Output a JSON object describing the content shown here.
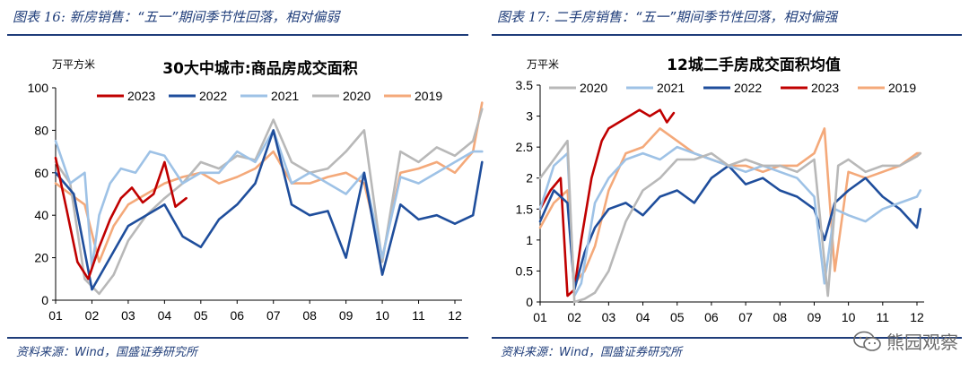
{
  "left": {
    "fig_label": "图表 16:",
    "fig_title": "新房销售：“五一”期间季节性回落，相对偏弱",
    "source": "资料来源：Wind，国盛证券研究所"
  },
  "right": {
    "fig_label": "图表 17:",
    "fig_title": "二手房销售：“五一”期间季节性回落，相对偏强",
    "source": "资料来源：Wind，国盛证券研究所"
  },
  "watermark": "熊园观察",
  "series_colors": {
    "2019": "#f4a97a",
    "2020": "#b8b8b8",
    "2021": "#9ec2e6",
    "2022": "#1f4e9c",
    "2023": "#c00000"
  },
  "chart_data": [
    {
      "type": "line",
      "title": "30大中城市:商品房成交面积",
      "ylabel": "万平方米",
      "xlabel": "",
      "categories": [
        "01",
        "02",
        "03",
        "04",
        "05",
        "06",
        "07",
        "08",
        "09",
        "10",
        "11",
        "12"
      ],
      "ylim": [
        0,
        100
      ],
      "yticks": [
        0,
        20,
        40,
        60,
        80,
        100
      ],
      "legend": [
        "2023",
        "2022",
        "2021",
        "2020",
        "2019"
      ],
      "series": [
        {
          "name": "2023",
          "x": [
            1.0,
            1.3,
            1.6,
            1.9,
            2.2,
            2.5,
            2.8,
            3.1,
            3.4,
            3.7,
            4.0,
            4.3,
            4.6
          ],
          "values": [
            67,
            43,
            18,
            10,
            25,
            38,
            48,
            53,
            46,
            50,
            65,
            44,
            48
          ]
        },
        {
          "name": "2022",
          "x": [
            1.0,
            1.5,
            2.0,
            2.5,
            3.0,
            3.5,
            4.0,
            4.5,
            5.0,
            5.5,
            6.0,
            6.5,
            7.0,
            7.5,
            8.0,
            8.5,
            9.0,
            9.5,
            10.0,
            10.5,
            11.0,
            11.5,
            12.0,
            12.5,
            12.75
          ],
          "values": [
            60,
            50,
            5,
            20,
            35,
            40,
            45,
            30,
            25,
            38,
            45,
            55,
            80,
            45,
            40,
            42,
            20,
            60,
            12,
            45,
            38,
            40,
            36,
            40,
            65
          ]
        },
        {
          "name": "2021",
          "x": [
            1.0,
            1.4,
            1.8,
            2.0,
            2.2,
            2.5,
            2.8,
            3.2,
            3.6,
            4.0,
            4.5,
            5.0,
            5.5,
            6.0,
            6.5,
            7.0,
            7.5,
            8.0,
            8.5,
            9.0,
            9.5,
            10.0,
            10.5,
            11.0,
            11.5,
            12.0,
            12.5,
            12.75
          ],
          "values": [
            75,
            55,
            60,
            15,
            40,
            55,
            62,
            60,
            70,
            68,
            55,
            60,
            60,
            70,
            65,
            80,
            55,
            60,
            55,
            50,
            60,
            20,
            58,
            55,
            60,
            65,
            70,
            70
          ]
        },
        {
          "name": "2020",
          "x": [
            1.0,
            1.4,
            1.8,
            2.2,
            2.6,
            3.0,
            3.5,
            4.0,
            4.5,
            5.0,
            5.5,
            6.0,
            6.5,
            7.0,
            7.5,
            8.0,
            8.5,
            9.0,
            9.5,
            10.0,
            10.5,
            11.0,
            11.5,
            12.0,
            12.5,
            12.75
          ],
          "values": [
            65,
            55,
            10,
            3,
            12,
            28,
            40,
            48,
            55,
            65,
            62,
            68,
            66,
            85,
            65,
            60,
            62,
            70,
            80,
            18,
            70,
            65,
            72,
            68,
            75,
            90
          ]
        },
        {
          "name": "2019",
          "x": [
            1.0,
            1.4,
            1.8,
            2.2,
            2.6,
            3.0,
            3.5,
            4.0,
            4.5,
            5.0,
            5.5,
            6.0,
            6.5,
            7.0,
            7.5,
            8.0,
            8.5,
            9.0,
            9.5,
            10.0,
            10.5,
            11.0,
            11.5,
            12.0,
            12.5,
            12.75
          ],
          "values": [
            55,
            50,
            45,
            18,
            35,
            45,
            50,
            55,
            58,
            60,
            55,
            58,
            62,
            70,
            55,
            55,
            58,
            60,
            55,
            20,
            60,
            62,
            65,
            60,
            70,
            93
          ]
        }
      ]
    },
    {
      "type": "line",
      "title": "12城二手房成交面积均值",
      "ylabel": "万平米",
      "xlabel": "",
      "categories": [
        "01",
        "02",
        "03",
        "04",
        "05",
        "06",
        "07",
        "08",
        "09",
        "10",
        "11",
        "12"
      ],
      "ylim": [
        0,
        3.5
      ],
      "yticks": [
        0,
        0.5,
        1,
        1.5,
        2,
        2.5,
        3,
        3.5
      ],
      "legend": [
        "2020",
        "2021",
        "2022",
        "2023",
        "2019"
      ],
      "series": [
        {
          "name": "2020",
          "x": [
            1.0,
            1.4,
            1.8,
            2.0,
            2.3,
            2.6,
            3.0,
            3.5,
            4.0,
            4.5,
            5.0,
            5.5,
            6.0,
            6.5,
            7.0,
            7.5,
            8.0,
            8.5,
            9.0,
            9.4,
            9.7,
            10.0,
            10.5,
            11.0,
            11.5,
            12.0,
            12.1
          ],
          "values": [
            2.0,
            2.3,
            2.6,
            0,
            0.05,
            0.15,
            0.5,
            1.3,
            1.8,
            2.0,
            2.3,
            2.3,
            2.4,
            2.2,
            2.3,
            2.2,
            2.2,
            2.1,
            2.3,
            0.1,
            2.2,
            2.3,
            2.1,
            2.2,
            2.2,
            2.35,
            2.4
          ]
        },
        {
          "name": "2021",
          "x": [
            1.0,
            1.4,
            1.8,
            2.0,
            2.2,
            2.6,
            3.0,
            3.5,
            4.0,
            4.5,
            5.0,
            5.5,
            6.0,
            6.5,
            7.0,
            7.5,
            8.0,
            8.5,
            9.0,
            9.3,
            9.6,
            10.0,
            10.5,
            11.0,
            11.5,
            12.0,
            12.1
          ],
          "values": [
            1.5,
            2.2,
            2.4,
            0.1,
            0.3,
            1.6,
            2.0,
            2.3,
            2.4,
            2.3,
            2.5,
            2.4,
            2.3,
            2.2,
            2.1,
            2.2,
            2.1,
            2.0,
            1.7,
            0.3,
            1.5,
            1.4,
            1.3,
            1.5,
            1.6,
            1.7,
            1.8
          ]
        },
        {
          "name": "2022",
          "x": [
            1.0,
            1.4,
            1.8,
            2.0,
            2.3,
            2.6,
            3.0,
            3.5,
            4.0,
            4.5,
            5.0,
            5.5,
            6.0,
            6.5,
            7.0,
            7.5,
            8.0,
            8.5,
            9.0,
            9.3,
            9.6,
            10.0,
            10.5,
            11.0,
            11.5,
            12.0,
            12.1
          ],
          "values": [
            1.3,
            1.8,
            1.6,
            0.2,
            0.8,
            1.2,
            1.5,
            1.6,
            1.4,
            1.7,
            1.8,
            1.6,
            2.0,
            2.2,
            1.9,
            2.0,
            1.8,
            1.7,
            1.5,
            1.0,
            1.6,
            1.8,
            2.0,
            1.7,
            1.5,
            1.2,
            1.5
          ]
        },
        {
          "name": "2023",
          "x": [
            1.0,
            1.3,
            1.6,
            1.8,
            2.0,
            2.2,
            2.5,
            2.8,
            3.0,
            3.3,
            3.6,
            3.9,
            4.2,
            4.5,
            4.7,
            4.9
          ],
          "values": [
            1.5,
            1.8,
            2.0,
            0.1,
            0.2,
            1.0,
            2.0,
            2.6,
            2.8,
            2.9,
            3.0,
            3.1,
            3.0,
            3.1,
            2.9,
            3.05
          ]
        },
        {
          "name": "2019",
          "x": [
            1.0,
            1.4,
            1.8,
            2.0,
            2.3,
            2.6,
            3.0,
            3.5,
            4.0,
            4.5,
            5.0,
            5.5,
            6.0,
            6.5,
            7.0,
            7.5,
            8.0,
            8.5,
            9.0,
            9.3,
            9.6,
            10.0,
            10.5,
            11.0,
            11.5,
            12.0,
            12.1
          ],
          "values": [
            1.2,
            1.6,
            1.8,
            0.3,
            0.5,
            0.9,
            1.8,
            2.4,
            2.5,
            2.8,
            2.6,
            2.4,
            2.3,
            2.2,
            2.2,
            2.1,
            2.2,
            2.2,
            2.4,
            2.8,
            0.5,
            2.1,
            2.0,
            2.1,
            2.2,
            2.4,
            2.4
          ]
        }
      ]
    }
  ]
}
